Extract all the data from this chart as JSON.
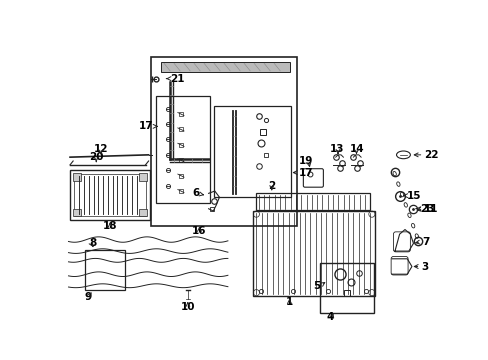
{
  "bg_color": "#ffffff",
  "lc": "#222222",
  "tc": "#000000",
  "fig_width": 4.89,
  "fig_height": 3.6,
  "dpi": 100
}
